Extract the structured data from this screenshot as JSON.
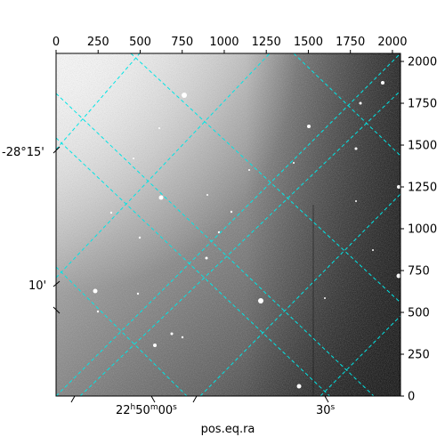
{
  "figure": {
    "xlabel": "pos.eq.ra",
    "grid_color": "#00e5e5",
    "image_colormap": "gray",
    "background_color": "#ffffff",
    "pixel_axes": {
      "x_ticks": [
        0,
        250,
        500,
        750,
        1000,
        1250,
        1500,
        1750,
        2000
      ],
      "x_labels": [
        "0",
        "250",
        "500",
        "750",
        "1000",
        "1250",
        "1500",
        "1750",
        "2000"
      ],
      "y_ticks": [
        0,
        250,
        500,
        750,
        1000,
        1250,
        1500,
        1750,
        2000
      ],
      "y_labels": [
        "0",
        "250",
        "500",
        "750",
        "1000",
        "1250",
        "1500",
        "1750",
        "2000"
      ],
      "x_range": [
        0,
        2048
      ],
      "y_range": [
        0,
        2048
      ]
    },
    "world_axes": {
      "ra_labels": [
        {
          "main": "22",
          "h": "h",
          "mid": "50",
          "m": "m",
          "tail": "00",
          "s": "s"
        },
        {
          "main": "30",
          "s": "s"
        }
      ],
      "dec_labels": [
        "-28°15'",
        "10'"
      ]
    }
  }
}
